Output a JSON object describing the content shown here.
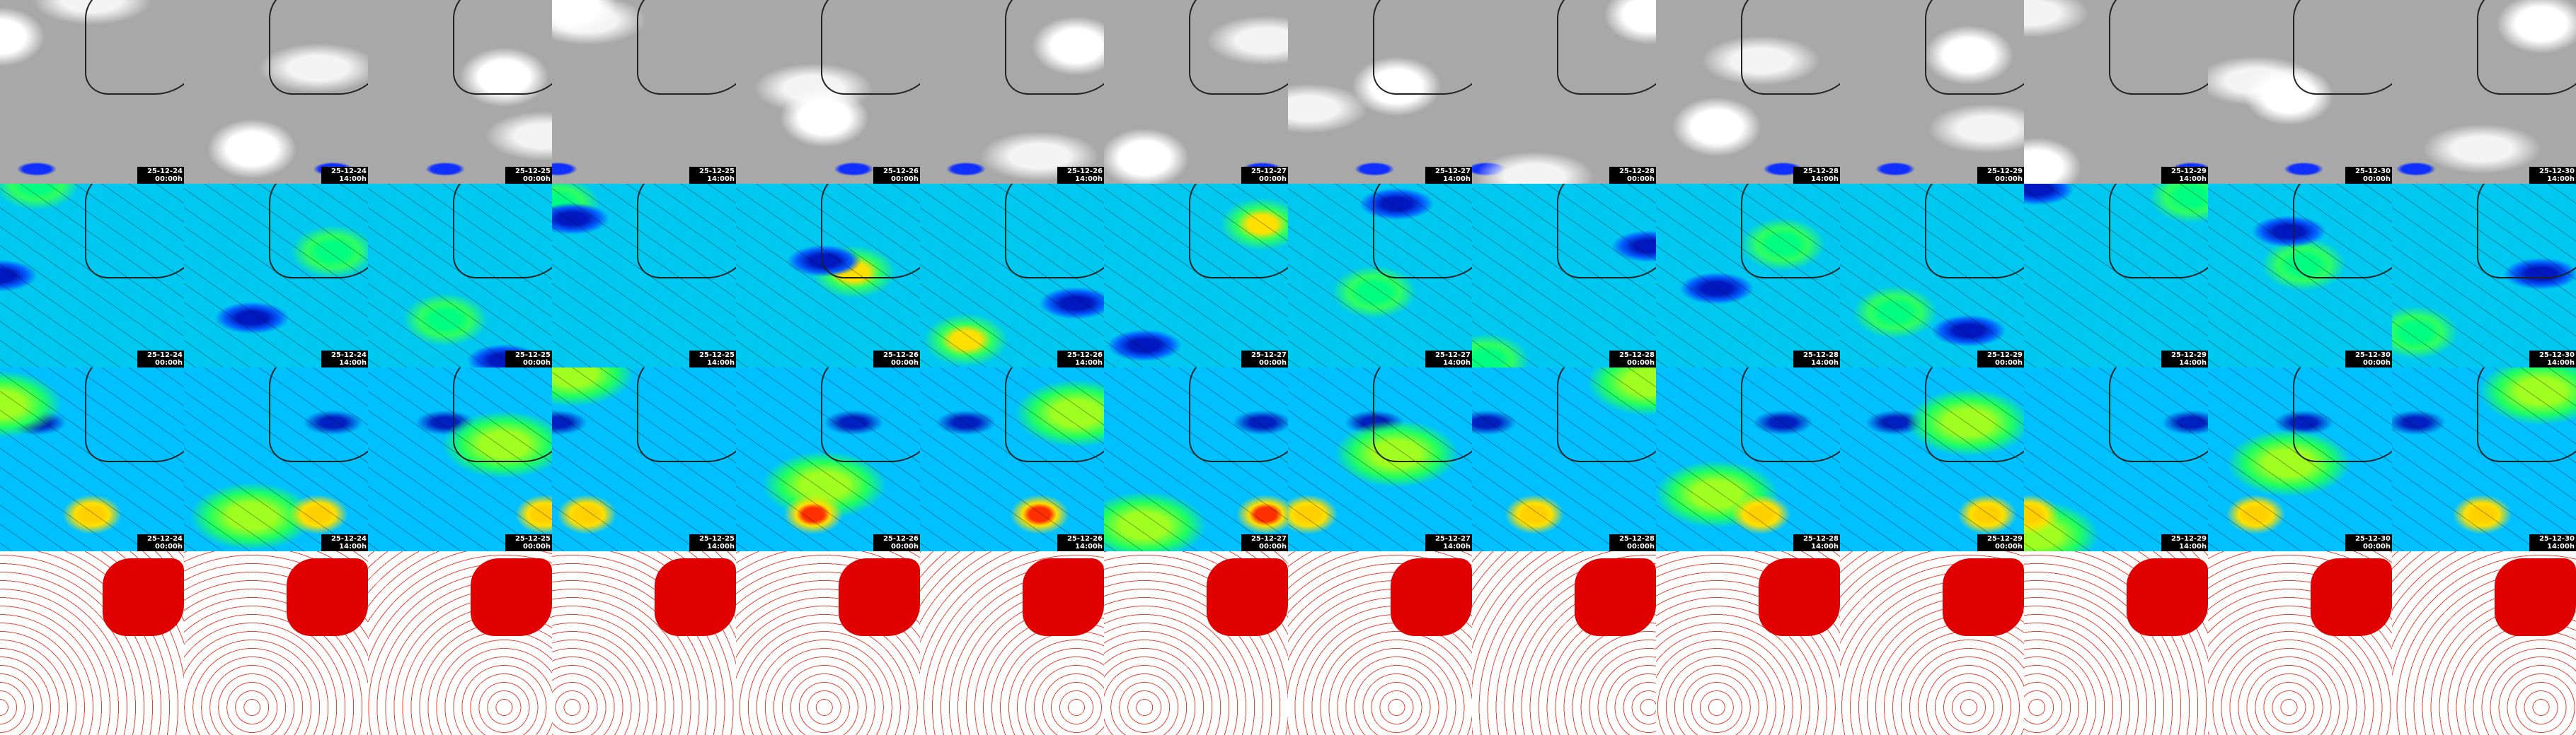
{
  "columns": [
    {
      "date": "25-12-24",
      "time": "00:00h"
    },
    {
      "date": "25-12-24",
      "time": "14:00h"
    },
    {
      "date": "25-12-25",
      "time": "00:00h"
    },
    {
      "date": "25-12-25",
      "time": "14:00h"
    },
    {
      "date": "25-12-26",
      "time": "00:00h"
    },
    {
      "date": "25-12-26",
      "time": "14:00h"
    },
    {
      "date": "25-12-27",
      "time": "00:00h"
    },
    {
      "date": "25-12-27",
      "time": "14:00h"
    },
    {
      "date": "25-12-28",
      "time": "00:00h"
    },
    {
      "date": "25-12-28",
      "time": "14:00h"
    },
    {
      "date": "25-12-29",
      "time": "00:00h"
    },
    {
      "date": "25-12-29",
      "time": "14:00h"
    },
    {
      "date": "25-12-30",
      "time": "00:00h"
    },
    {
      "date": "25-12-30",
      "time": "14:00h"
    }
  ]
}
